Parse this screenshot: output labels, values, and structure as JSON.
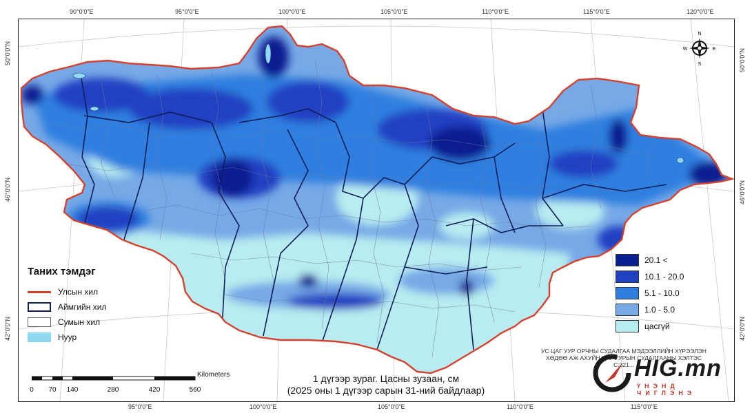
{
  "map": {
    "ticks_top": [
      "90°0'0\"E",
      "95°0'0\"E",
      "100°0'0\"E",
      "105°0'0\"E",
      "110°0'0\"E",
      "115°0'0\"E",
      "120°0'0\"E"
    ],
    "ticks_bottom": [
      "95°0'0\"E",
      "100°0'0\"E",
      "105°0'0\"E",
      "110°0'0\"E",
      "115°0'0\"E"
    ],
    "ticks_left": [
      "50°0'0\"N",
      "46°0'0\"N",
      "42°0'0\"N"
    ],
    "ticks_right": [
      "50°0'0\"N",
      "46°0'0\"N",
      "42°0'0\"N"
    ],
    "compass": {
      "n": "N",
      "s": "S",
      "e": "E",
      "w": "W"
    }
  },
  "legend": {
    "title": "Таних тэмдэг",
    "items": [
      {
        "label": "Улсын хил",
        "icon": "red-line"
      },
      {
        "label": "Аймгийн хил",
        "icon": "navy-box"
      },
      {
        "label": "Сумын хил",
        "icon": "gray-box"
      },
      {
        "label": "Нуур",
        "icon": "lake-fill"
      }
    ]
  },
  "classes": [
    {
      "label": "20.1 <",
      "color": "#0a1f8f"
    },
    {
      "label": "10.1 - 20.0",
      "color": "#2141c2"
    },
    {
      "label": "5.1 - 10.0",
      "color": "#2f7fe0"
    },
    {
      "label": "1.0 - 5.0",
      "color": "#76a9e6"
    },
    {
      "label": "цасгүй",
      "color": "#b8ecf0"
    }
  ],
  "caption": {
    "line1": "1 дүгээр зураг. Цасны зузаан, см",
    "line2": "(2025 оны 1 дүгээр сарын 31-ний байдлаар)"
  },
  "scale": {
    "unit": "Kilometers",
    "labels": [
      "0",
      "70",
      "140",
      "280",
      "420",
      "560"
    ]
  },
  "agency": {
    "line1": "УС ЦАГ УУР ОРЧНЫ СУДАЛГАА МЭДЭЭЛЛИЙН ХҮРЭЭЛЭН",
    "line2": "ХӨДӨӨ АЖ АХУЙН ЦАГ УУРЫН СУДАЛГААНЫ ХЭЛТЭС",
    "line3": "С:321..."
  },
  "logo": {
    "text": "HIG.mn",
    "sub": "ҮНЭНД ЧИГЛЭНЭ"
  }
}
